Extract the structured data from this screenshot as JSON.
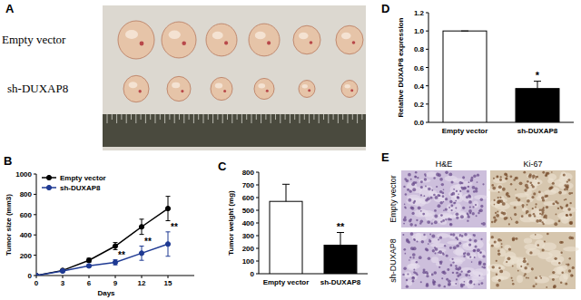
{
  "figure_labels": [
    "A",
    "B",
    "C",
    "D",
    "E"
  ],
  "photo": {
    "rows": [
      "Empty vector",
      "sh-DUXAP8"
    ]
  },
  "histology": {
    "columns": [
      "H&E",
      "Ki-67"
    ],
    "rows": [
      "Empty vector",
      "sh-DUXAP8"
    ]
  },
  "chart_data": [
    {
      "type": "line",
      "x": [
        0,
        3,
        6,
        9,
        12,
        15
      ],
      "xlim": [
        0,
        18
      ],
      "xticks": [
        0,
        3,
        6,
        9,
        12,
        15
      ],
      "ylim": [
        0,
        1000
      ],
      "yticks": [
        0,
        200,
        400,
        600,
        800,
        1000
      ],
      "x_label": "Days",
      "y_label": "Tumor size (mm3)",
      "legend": "upper left",
      "marker": "circle",
      "series": [
        {
          "name": "Empty vector",
          "color": "#000000",
          "values": [
            0,
            50,
            150,
            290,
            480,
            660
          ],
          "errors": [
            0,
            5,
            20,
            35,
            75,
            120
          ]
        },
        {
          "name": "sh-DUXAP8",
          "color": "#1f3a93",
          "values": [
            0,
            45,
            95,
            130,
            220,
            310
          ],
          "errors": [
            0,
            5,
            12,
            25,
            70,
            120
          ]
        }
      ],
      "annotations": [
        {
          "x": 9,
          "text": "**"
        },
        {
          "x": 12,
          "text": "**"
        },
        {
          "x": 15,
          "text": "**"
        }
      ]
    },
    {
      "type": "bar",
      "categories": [
        "Empty vector",
        "sh-DUXAP8"
      ],
      "values": [
        570,
        225
      ],
      "errors": [
        135,
        100
      ],
      "colors": [
        "#ffffff",
        "#000000"
      ],
      "ylim": [
        0,
        800
      ],
      "yticks": [
        0,
        100,
        200,
        300,
        400,
        500,
        600,
        700,
        800
      ],
      "y_label": "Tumor weight (mg)",
      "annotations": [
        {
          "category": "sh-DUXAP8",
          "text": "**"
        }
      ]
    },
    {
      "type": "bar",
      "categories": [
        "Empty vector",
        "sh-DUXAP8"
      ],
      "values": [
        1.0,
        0.37
      ],
      "errors": [
        0,
        0.08
      ],
      "colors": [
        "#ffffff",
        "#000000"
      ],
      "ylim": [
        0,
        1.2
      ],
      "yticks": [
        {
          "value": 0,
          "label": "0.0"
        },
        0.2,
        0.4,
        0.6,
        0.8,
        {
          "value": 1,
          "label": "1.0"
        },
        1.2
      ],
      "y_label": "Relative DUXAP8 expression",
      "annotations": [
        {
          "category": "sh-DUXAP8",
          "text": "*"
        }
      ]
    }
  ]
}
